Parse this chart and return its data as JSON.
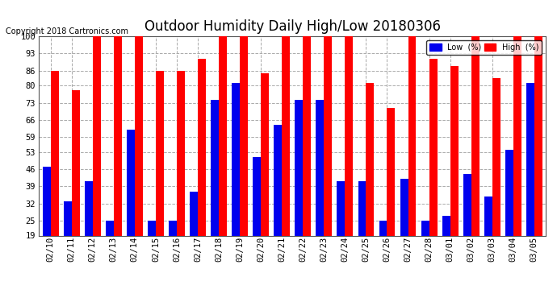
{
  "title": "Outdoor Humidity Daily High/Low 20180306",
  "copyright": "Copyright 2018 Cartronics.com",
  "categories": [
    "02/10",
    "02/11",
    "02/12",
    "02/13",
    "02/14",
    "02/15",
    "02/16",
    "02/17",
    "02/18",
    "02/19",
    "02/20",
    "02/21",
    "02/22",
    "02/23",
    "02/24",
    "02/25",
    "02/26",
    "02/27",
    "02/28",
    "03/01",
    "03/02",
    "03/03",
    "03/04",
    "03/05"
  ],
  "high_values": [
    86,
    78,
    100,
    100,
    100,
    86,
    86,
    91,
    100,
    100,
    85,
    100,
    100,
    100,
    100,
    81,
    71,
    100,
    91,
    88,
    100,
    83,
    100,
    100
  ],
  "low_values": [
    47,
    33,
    41,
    25,
    62,
    25,
    25,
    37,
    74,
    81,
    51,
    64,
    74,
    74,
    41,
    41,
    25,
    42,
    25,
    27,
    44,
    35,
    54,
    81
  ],
  "high_color": "#ff0000",
  "low_color": "#0000ee",
  "background_color": "#ffffff",
  "grid_color": "#aaaaaa",
  "ylim_min": 19,
  "ylim_max": 100,
  "yticks": [
    19,
    25,
    32,
    39,
    46,
    53,
    59,
    66,
    73,
    80,
    86,
    93,
    100
  ],
  "title_fontsize": 12,
  "tick_fontsize": 7.5,
  "copyright_fontsize": 7,
  "legend_low_label": "Low  (%)",
  "legend_high_label": "High  (%)",
  "bar_width": 0.38
}
